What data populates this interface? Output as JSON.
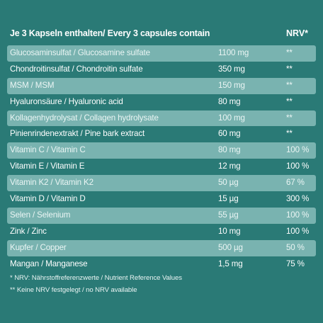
{
  "header": {
    "title": "Je 3 Kapseln enthalten/ Every 3 capsules contain",
    "nrv_label": "NRV*"
  },
  "rows": [
    {
      "name": "Glucosaminsulfat / Glucosamine sulfate",
      "amount": "1100 mg",
      "nrv": "**"
    },
    {
      "name": "Chondroitinsulfat / Chondroitin sulfate",
      "amount": "350 mg",
      "nrv": "**"
    },
    {
      "name": "MSM / MSM",
      "amount": "150 mg",
      "nrv": "**"
    },
    {
      "name": "Hyaluronsäure / Hyaluronic acid",
      "amount": "80 mg",
      "nrv": "**"
    },
    {
      "name": "Kollagenhydrolysat / Collagen hydrolysate",
      "amount": "100 mg",
      "nrv": "**"
    },
    {
      "name": "Pinienrindenextrakt / Pine bark extract",
      "amount": "60 mg",
      "nrv": "**"
    },
    {
      "name": "Vitamin C / Vitamin C",
      "amount": "80 mg",
      "nrv": "100 %"
    },
    {
      "name": "Vitamin E / Vitamin E",
      "amount": "12 mg",
      "nrv": "100 %"
    },
    {
      "name": "Vitamin K2 / Vitamin K2",
      "amount": "50 µg",
      "nrv": "67 %"
    },
    {
      "name": "Vitamin D / Vitamin D",
      "amount": "15 µg",
      "nrv": "300 %"
    },
    {
      "name": "Selen / Selenium",
      "amount": "55 µg",
      "nrv": "100 %"
    },
    {
      "name": "Zink / Zinc",
      "amount": "10 mg",
      "nrv": "100 %"
    },
    {
      "name": "Kupfer / Copper",
      "amount": "500 µg",
      "nrv": "50 %"
    },
    {
      "name": "Mangan / Manganese",
      "amount": "1,5 mg",
      "nrv": "75 %"
    }
  ],
  "footnotes": {
    "nrv": "* NRV: Nährstoffreferenzwerte / Nutrient Reference Values",
    "none": "** Keine NRV festgelegt / no NRV available"
  },
  "colors": {
    "background": "#2a7a76",
    "row_shade": "#79b3b0",
    "text": "#ffffff"
  }
}
